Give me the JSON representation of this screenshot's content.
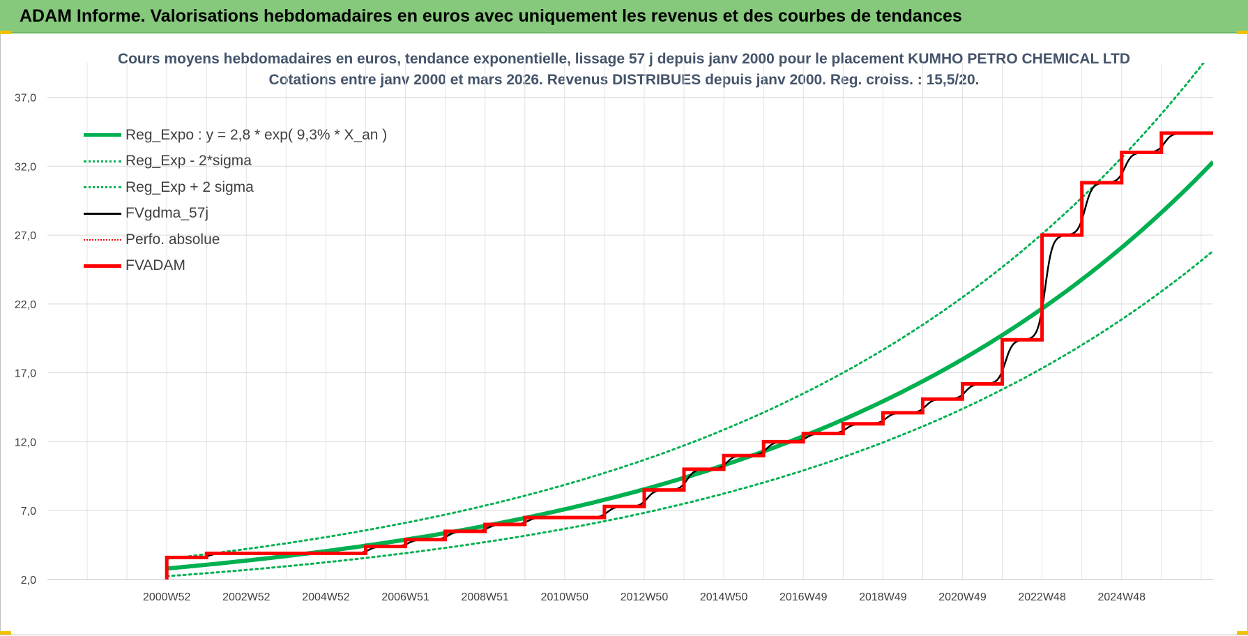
{
  "header": {
    "title": "ADAM Informe. Valorisations hebdomadaires en euros avec uniquement les revenus et des courbes de tendances"
  },
  "chart_data": {
    "type": "line",
    "title_line1": "Cours moyens hebdomadaires en euros, tendance exponentielle, lissage 57 j depuis janv 2000 pour le placement KUMHO PETRO CHEMICAL LTD",
    "title_line2": "Cotations entre janv 2000 et mars 2026. Revenus DISTRIBUES depuis janv 2000. Reg. croiss. : 15,5/20.",
    "ylim": [
      2.0,
      39.0
    ],
    "xlim": [
      1998.0,
      2027.3
    ],
    "yticks": [
      "2,0",
      "7,0",
      "12,0",
      "17,0",
      "22,0",
      "27,0",
      "32,0",
      "37,0"
    ],
    "xtick_labels": [
      "2000W52",
      "2002W52",
      "2004W52",
      "2006W51",
      "2008W51",
      "2010W50",
      "2012W50",
      "2014W50",
      "2016W49",
      "2018W49",
      "2020W49",
      "2022W48",
      "2024W48"
    ],
    "grid": true,
    "legend_position": "top-left",
    "colors": {
      "reg": "#00b050",
      "fvgdma": "#000000",
      "perfo": "#ff0000",
      "fvadam": "#ff0000"
    },
    "series": [
      {
        "name": "Reg_Expo : y = 2,8 * exp( 9,3% *  X_an )",
        "style": "solid-thick",
        "x_start": 2001.0,
        "x_end": 2027.3,
        "y_start": 2.8,
        "rate": 0.093
      },
      {
        "name": "Reg_Exp - 2*sigma",
        "style": "dotted",
        "factor": 0.8
      },
      {
        "name": "Reg_Exp + 2 sigma",
        "style": "dotted",
        "factor": 1.25
      },
      {
        "name": "FVgdma_57j",
        "style": "solid-thin"
      },
      {
        "name": "Perfo. absolue",
        "style": "dotted-red"
      },
      {
        "name": "FVADAM",
        "style": "solid-red-thick",
        "steps": [
          {
            "x": 2001.0,
            "y": 3.6
          },
          {
            "x": 2002.0,
            "y": 3.9
          },
          {
            "x": 2006.0,
            "y": 4.4
          },
          {
            "x": 2007.0,
            "y": 4.9
          },
          {
            "x": 2008.0,
            "y": 5.5
          },
          {
            "x": 2009.0,
            "y": 6.0
          },
          {
            "x": 2010.0,
            "y": 6.5
          },
          {
            "x": 2012.0,
            "y": 7.3
          },
          {
            "x": 2013.0,
            "y": 8.5
          },
          {
            "x": 2014.0,
            "y": 10.0
          },
          {
            "x": 2015.0,
            "y": 11.0
          },
          {
            "x": 2016.0,
            "y": 12.0
          },
          {
            "x": 2017.0,
            "y": 12.6
          },
          {
            "x": 2018.0,
            "y": 13.3
          },
          {
            "x": 2019.0,
            "y": 14.1
          },
          {
            "x": 2020.0,
            "y": 15.1
          },
          {
            "x": 2021.0,
            "y": 16.2
          },
          {
            "x": 2022.0,
            "y": 19.4
          },
          {
            "x": 2023.0,
            "y": 27.0
          },
          {
            "x": 2024.0,
            "y": 30.8
          },
          {
            "x": 2025.0,
            "y": 33.0
          },
          {
            "x": 2026.0,
            "y": 34.4
          }
        ],
        "x_end": 2027.3,
        "y_origin": 2.0
      }
    ]
  }
}
